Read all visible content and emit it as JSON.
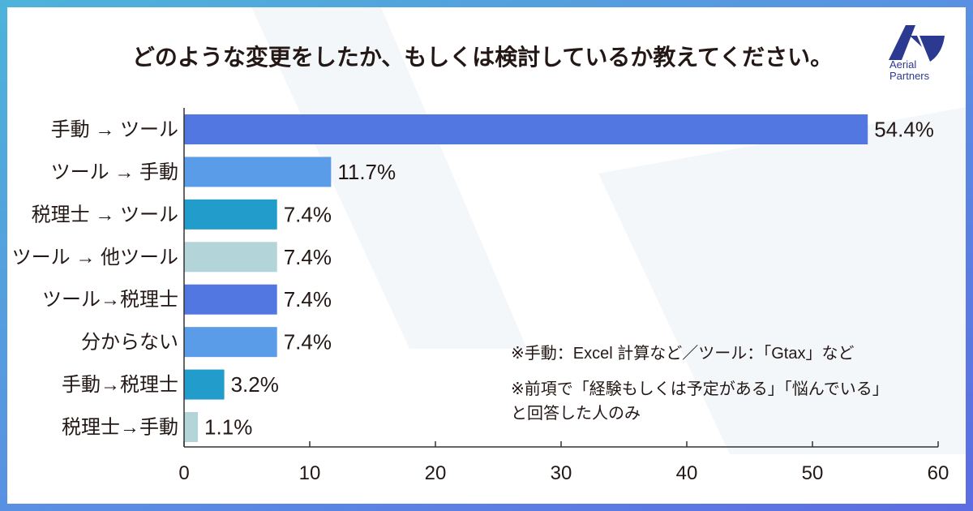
{
  "logo": {
    "line1": "Aerial",
    "line2": "Partners"
  },
  "colors": {
    "frame_start": "#4DB3D9",
    "frame_mid": "#5A8DE3",
    "frame_end": "#5C6CE2",
    "logo": "#2B3990",
    "axis": "#333333"
  },
  "chart_data": {
    "type": "bar",
    "orientation": "horizontal",
    "title": "どのような変更をしたか、もしくは検討しているか教えてください。",
    "xlabel": "",
    "ylabel": "",
    "categories": [
      "手動 → ツール",
      "ツール → 手動",
      "税理士 → ツール",
      "ツール → 他ツール",
      "ツール→税理士",
      "分からない",
      "手動→税理士",
      "税理士→手動"
    ],
    "values": [
      54.4,
      11.7,
      7.4,
      7.4,
      7.4,
      7.4,
      3.2,
      1.1
    ],
    "value_labels": [
      "54.4%",
      "11.7%",
      "7.4%",
      "7.4%",
      "7.4%",
      "7.4%",
      "3.2%",
      "1.1%"
    ],
    "bar_colors": [
      "#5277E1",
      "#5A9CE7",
      "#219CCB",
      "#B3D4D9",
      "#5277E1",
      "#5A9CE7",
      "#219CCB",
      "#B3D4D9"
    ],
    "xlim": [
      0,
      60
    ],
    "xticks": [
      0,
      10,
      20,
      30,
      40,
      50,
      60
    ],
    "grid": false,
    "legend": false,
    "annotations": [
      "※手動：Excel 計算など／ツール：「Gtax」など",
      "※前項で「経験もしくは予定がある」「悩んでいる」",
      "と回答した人のみ"
    ]
  }
}
